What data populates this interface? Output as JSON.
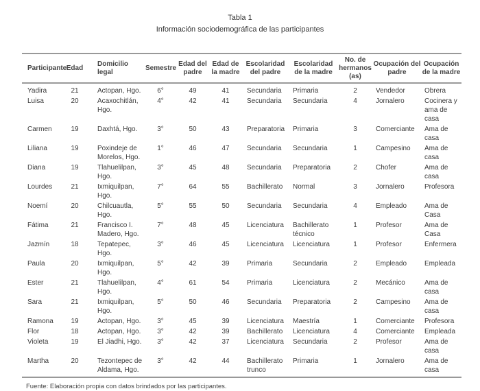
{
  "caption": {
    "label": "Tabla 1",
    "title": "Información sociodemográfica de las participantes"
  },
  "table": {
    "headers": [
      "Participante",
      "Edad",
      "Domicilio legal",
      "Semestre",
      "Edad del padre",
      "Edad de la madre",
      "Escolaridad del padre",
      "Escolaridad de la madre",
      "No. de hermanos (as)",
      "Ocupación del padre",
      "Ocupación de la madre"
    ],
    "rows": [
      [
        "Yadira",
        "21",
        "Actopan, Hgo.",
        "6°",
        "49",
        "41",
        "Secundaria",
        "Primaria",
        "2",
        "Vendedor",
        "Obrera"
      ],
      [
        "Luisa",
        "20",
        "Acaxochitlán, Hgo.",
        "4°",
        "42",
        "41",
        "Secundaria",
        "Secundaria",
        "4",
        "Jornalero",
        "Cocinera y ama de casa"
      ],
      [
        "Carmen",
        "19",
        "Daxhtá, Hgo.",
        "3°",
        "50",
        "43",
        "Preparatoria",
        "Primaria",
        "3",
        "Comerciante",
        "Ama de casa"
      ],
      [
        "Liliana",
        "19",
        "Poxindeje de Morelos, Hgo.",
        "1°",
        "46",
        "47",
        "Secundaria",
        "Secundaria",
        "1",
        "Campesino",
        "Ama de casa"
      ],
      [
        "Diana",
        "19",
        "Tlahuelilpan, Hgo.",
        "3°",
        "45",
        "48",
        "Secundaria",
        "Preparatoria",
        "2",
        "Chofer",
        "Ama de casa"
      ],
      [
        "Lourdes",
        "21",
        "Ixmiquilpan, Hgo.",
        "7°",
        "64",
        "55",
        "Bachillerato",
        "Normal",
        "3",
        "Jornalero",
        "Profesora"
      ],
      [
        "Noemí",
        "20",
        "Chilcuautla, Hgo.",
        "5°",
        "55",
        "50",
        "Secundaria",
        "Secundaria",
        "4",
        "Empleado",
        "Ama de Casa"
      ],
      [
        "Fátima",
        "21",
        "Francisco I. Madero, Hgo.",
        "7°",
        "48",
        "45",
        "Licenciatura",
        "Bachillerato técnico",
        "1",
        "Profesor",
        "Ama de Casa"
      ],
      [
        "Jazmín",
        "18",
        "Tepatepec, Hgo.",
        "3°",
        "46",
        "45",
        "Licenciatura",
        "Licenciatura",
        "1",
        "Profesor",
        "Enfermera"
      ],
      [
        "Paula",
        "20",
        "Ixmiquilpan, Hgo.",
        "5°",
        "42",
        "39",
        "Primaria",
        "Secundaria",
        "2",
        "Empleado",
        "Empleada"
      ],
      [
        "Ester",
        "21",
        "Tlahuelilpan, Hgo.",
        "4°",
        "61",
        "54",
        "Primaria",
        "Licenciatura",
        "2",
        "Mecánico",
        "Ama de casa"
      ],
      [
        "Sara",
        "21",
        "Ixmiquilpan, Hgo.",
        "5°",
        "50",
        "46",
        "Secundaria",
        "Preparatoria",
        "2",
        "Campesino",
        "Ama de casa"
      ],
      [
        "Ramona",
        "19",
        "Actopan, Hgo.",
        "3°",
        "45",
        "39",
        "Licenciatura",
        "Maestría",
        "1",
        "Comerciante",
        "Profesora"
      ],
      [
        "Flor",
        "18",
        "Actopan, Hgo.",
        "3°",
        "42",
        "39",
        "Bachillerato",
        "Licenciatura",
        "4",
        "Comerciante",
        "Empleada"
      ],
      [
        "Violeta",
        "19",
        "El Jiadhi, Hgo.",
        "3°",
        "42",
        "37",
        "Licenciatura",
        "Secundaria",
        "2",
        "Profesor",
        "Ama de casa"
      ],
      [
        "Martha",
        "20",
        "Tezontepec de Aldama, Hgo.",
        "3°",
        "42",
        "44",
        "Bachillerato trunco",
        "Primaria",
        "1",
        "Jornalero",
        "Ama de casa"
      ]
    ]
  },
  "footnote": "Fuente: Elaboración propia con datos brindados por las participantes."
}
